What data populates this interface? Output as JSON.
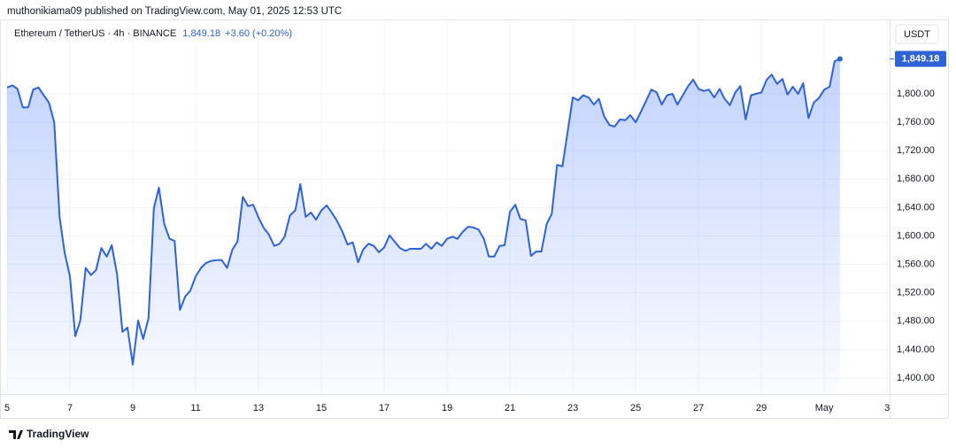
{
  "published": "muthonikiama09 published on TradingView.com, May 01, 2025 12:53 UTC",
  "footer": "TradingView",
  "chart_data": {
    "type": "area",
    "header": {
      "symbol": "Ethereum / TetherUS · 4h · BINANCE",
      "price": "1,849.18",
      "change": "+3.60 (+0.20%)"
    },
    "currency": "USDT",
    "color": "#2e62d9",
    "grid": true,
    "xlim": [
      5,
      33.08
    ],
    "ylim": [
      1377.6,
      1904.7
    ],
    "xticks": [
      5,
      7,
      9,
      11,
      13,
      15,
      17,
      19,
      21,
      23,
      25,
      27,
      29,
      {
        "value": 31,
        "label": "May"
      },
      {
        "value": 33,
        "label": "3"
      }
    ],
    "yticks": [
      {
        "value": 1400,
        "label": "1,400.00"
      },
      {
        "value": 1440,
        "label": "1,440.00"
      },
      {
        "value": 1480,
        "label": "1,480.00"
      },
      {
        "value": 1520,
        "label": "1,520.00"
      },
      {
        "value": 1560,
        "label": "1,560.00"
      },
      {
        "value": 1600,
        "label": "1,600.00"
      },
      {
        "value": 1640,
        "label": "1,640.00"
      },
      {
        "value": 1680,
        "label": "1,680.00"
      },
      {
        "value": 1720,
        "label": "1,720.00"
      },
      {
        "value": 1760,
        "label": "1,760.00"
      },
      {
        "value": 1800,
        "label": "1,800.00"
      }
    ],
    "x": [
      5,
      5.17,
      5.33,
      5.5,
      5.67,
      5.83,
      6,
      6.17,
      6.33,
      6.5,
      6.67,
      6.83,
      7,
      7.17,
      7.33,
      7.5,
      7.67,
      7.83,
      8,
      8.17,
      8.33,
      8.5,
      8.67,
      8.83,
      9,
      9.17,
      9.33,
      9.5,
      9.67,
      9.83,
      10,
      10.17,
      10.33,
      10.5,
      10.67,
      10.83,
      11,
      11.17,
      11.33,
      11.5,
      11.67,
      11.83,
      12,
      12.17,
      12.33,
      12.5,
      12.67,
      12.83,
      13,
      13.17,
      13.33,
      13.5,
      13.67,
      13.83,
      14,
      14.17,
      14.33,
      14.5,
      14.67,
      14.83,
      15,
      15.17,
      15.33,
      15.5,
      15.67,
      15.83,
      16,
      16.17,
      16.33,
      16.5,
      16.67,
      16.83,
      17,
      17.17,
      17.33,
      17.5,
      17.67,
      17.83,
      18,
      18.17,
      18.33,
      18.5,
      18.67,
      18.83,
      19,
      19.17,
      19.33,
      19.5,
      19.67,
      19.83,
      20,
      20.17,
      20.33,
      20.5,
      20.67,
      20.83,
      21,
      21.17,
      21.33,
      21.5,
      21.67,
      21.83,
      22,
      22.17,
      22.33,
      22.5,
      22.67,
      22.83,
      23,
      23.17,
      23.33,
      23.5,
      23.67,
      23.83,
      24,
      24.17,
      24.33,
      24.5,
      24.67,
      24.83,
      25,
      25.17,
      25.33,
      25.5,
      25.67,
      25.83,
      26,
      26.17,
      26.33,
      26.5,
      26.67,
      26.83,
      27,
      27.17,
      27.33,
      27.5,
      27.67,
      27.83,
      28,
      28.17,
      28.33,
      28.5,
      28.67,
      28.83,
      29,
      29.17,
      29.33,
      29.5,
      29.67,
      29.83,
      30,
      30.17,
      30.33,
      30.5,
      30.67,
      30.83,
      31,
      31.17,
      31.33,
      31.5
    ],
    "values": [
      1809,
      1812,
      1807,
      1781,
      1781,
      1806,
      1809,
      1798,
      1788,
      1760,
      1627,
      1577,
      1543,
      1459,
      1481,
      1555,
      1545,
      1552,
      1583,
      1571,
      1587,
      1546,
      1465,
      1471,
      1419,
      1481,
      1455,
      1484,
      1639,
      1668,
      1617,
      1596,
      1593,
      1496,
      1515,
      1523,
      1543,
      1555,
      1562,
      1565,
      1566,
      1566,
      1555,
      1581,
      1592,
      1655,
      1642,
      1644,
      1626,
      1611,
      1602,
      1586,
      1589,
      1599,
      1629,
      1636,
      1673,
      1627,
      1633,
      1623,
      1636,
      1643,
      1633,
      1621,
      1606,
      1588,
      1591,
      1563,
      1581,
      1589,
      1586,
      1577,
      1584,
      1601,
      1592,
      1583,
      1579,
      1582,
      1582,
      1582,
      1589,
      1582,
      1591,
      1586,
      1596,
      1599,
      1596,
      1606,
      1613,
      1612,
      1609,
      1596,
      1571,
      1571,
      1586,
      1587,
      1634,
      1644,
      1624,
      1622,
      1572,
      1578,
      1578,
      1617,
      1631,
      1700,
      1698,
      1745,
      1795,
      1791,
      1798,
      1795,
      1785,
      1793,
      1768,
      1756,
      1754,
      1764,
      1763,
      1770,
      1760,
      1775,
      1790,
      1806,
      1802,
      1785,
      1798,
      1800,
      1785,
      1798,
      1811,
      1820,
      1807,
      1804,
      1806,
      1795,
      1807,
      1793,
      1784,
      1802,
      1811,
      1764,
      1798,
      1800,
      1802,
      1820,
      1827,
      1814,
      1821,
      1799,
      1810,
      1800,
      1815,
      1766,
      1788,
      1794,
      1806,
      1810,
      1846,
      1849.18
    ]
  }
}
